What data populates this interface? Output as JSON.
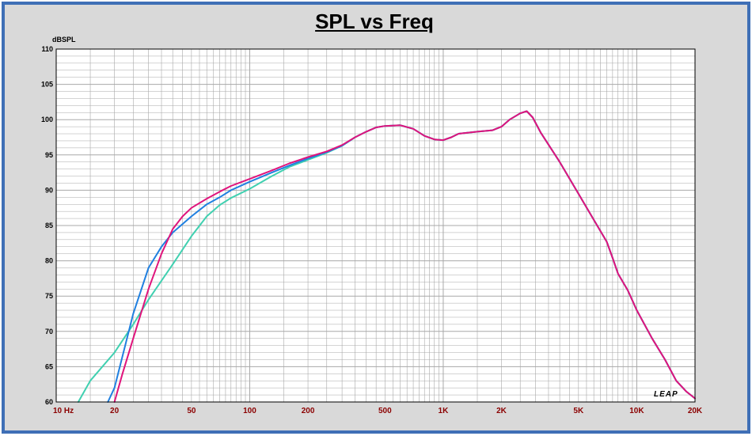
{
  "chart_data": {
    "type": "line",
    "title": "SPL vs Freq",
    "ylabel": "dBSPL",
    "xlabel": "",
    "xscale": "log",
    "xlim": [
      10,
      20000
    ],
    "ylim": [
      60,
      110
    ],
    "grid": true,
    "legend": "none",
    "watermark": "LEAP",
    "y_ticks": [
      "60",
      "65",
      "70",
      "75",
      "80",
      "85",
      "90",
      "95",
      "100",
      "105",
      "110"
    ],
    "x_ticks": [
      {
        "v": 10,
        "label": "10 Hz"
      },
      {
        "v": 20,
        "label": "20"
      },
      {
        "v": 50,
        "label": "50"
      },
      {
        "v": 100,
        "label": "100"
      },
      {
        "v": 200,
        "label": "200"
      },
      {
        "v": 500,
        "label": "500"
      },
      {
        "v": 1000,
        "label": "1K"
      },
      {
        "v": 2000,
        "label": "2K"
      },
      {
        "v": 5000,
        "label": "5K"
      },
      {
        "v": 10000,
        "label": "10K"
      },
      {
        "v": 20000,
        "label": "20K"
      }
    ],
    "series": [
      {
        "color": "#40d0b0",
        "points": [
          [
            13,
            60
          ],
          [
            15,
            63
          ],
          [
            20,
            67
          ],
          [
            25,
            71
          ],
          [
            30,
            74.5
          ],
          [
            40,
            79.5
          ],
          [
            50,
            83.5
          ],
          [
            60,
            86.3
          ],
          [
            70,
            87.9
          ],
          [
            80,
            88.9
          ],
          [
            100,
            90.2
          ],
          [
            130,
            92
          ],
          [
            160,
            93.3
          ],
          [
            200,
            94.3
          ],
          [
            250,
            95.3
          ],
          [
            300,
            96.3
          ],
          [
            350,
            97.5
          ],
          [
            400,
            98.3
          ],
          [
            450,
            98.9
          ],
          [
            500,
            99.1
          ],
          [
            600,
            99.2
          ],
          [
            700,
            98.7
          ],
          [
            800,
            97.7
          ],
          [
            900,
            97.2
          ],
          [
            1000,
            97.1
          ],
          [
            1100,
            97.5
          ],
          [
            1200,
            98
          ],
          [
            1500,
            98.3
          ],
          [
            1800,
            98.5
          ],
          [
            2000,
            99
          ],
          [
            2200,
            100
          ],
          [
            2500,
            100.9
          ],
          [
            2700,
            101.2
          ],
          [
            2900,
            100.3
          ],
          [
            3200,
            98.1
          ],
          [
            4000,
            94
          ],
          [
            5000,
            89.5
          ],
          [
            6000,
            85.8
          ],
          [
            7000,
            82.7
          ],
          [
            7500,
            80.4
          ],
          [
            8000,
            78.2
          ],
          [
            9000,
            75.8
          ],
          [
            10000,
            73
          ],
          [
            12000,
            69
          ],
          [
            14000,
            66
          ],
          [
            16000,
            63
          ],
          [
            18000,
            61.5
          ],
          [
            20000,
            60.5
          ]
        ]
      },
      {
        "color": "#2080e0",
        "points": [
          [
            18.5,
            60
          ],
          [
            20,
            62
          ],
          [
            25,
            72.5
          ],
          [
            30,
            79
          ],
          [
            35,
            82
          ],
          [
            40,
            84
          ],
          [
            50,
            86.3
          ],
          [
            60,
            88
          ],
          [
            70,
            89
          ],
          [
            80,
            90
          ],
          [
            100,
            91.2
          ],
          [
            130,
            92.5
          ],
          [
            160,
            93.5
          ],
          [
            200,
            94.5
          ],
          [
            250,
            95.4
          ],
          [
            300,
            96.3
          ],
          [
            350,
            97.5
          ],
          [
            400,
            98.3
          ],
          [
            450,
            98.9
          ],
          [
            500,
            99.1
          ],
          [
            600,
            99.2
          ],
          [
            700,
            98.7
          ],
          [
            800,
            97.7
          ],
          [
            900,
            97.2
          ],
          [
            1000,
            97.1
          ],
          [
            1100,
            97.5
          ],
          [
            1200,
            98
          ],
          [
            1500,
            98.3
          ],
          [
            1800,
            98.5
          ],
          [
            2000,
            99
          ],
          [
            2200,
            100
          ],
          [
            2500,
            100.9
          ],
          [
            2700,
            101.2
          ],
          [
            2900,
            100.3
          ],
          [
            3200,
            98.1
          ],
          [
            4000,
            94
          ],
          [
            5000,
            89.5
          ],
          [
            6000,
            85.8
          ],
          [
            7000,
            82.7
          ],
          [
            7500,
            80.4
          ],
          [
            8000,
            78.2
          ],
          [
            9000,
            75.8
          ],
          [
            10000,
            73
          ],
          [
            12000,
            69
          ],
          [
            14000,
            66
          ],
          [
            16000,
            63
          ],
          [
            18000,
            61.5
          ],
          [
            20000,
            60.5
          ]
        ]
      },
      {
        "color": "#e0147c",
        "points": [
          [
            20,
            60
          ],
          [
            22,
            64
          ],
          [
            25,
            69
          ],
          [
            30,
            76
          ],
          [
            35,
            81
          ],
          [
            40,
            84.5
          ],
          [
            45,
            86.3
          ],
          [
            50,
            87.5
          ],
          [
            60,
            88.8
          ],
          [
            70,
            89.8
          ],
          [
            80,
            90.6
          ],
          [
            100,
            91.6
          ],
          [
            130,
            92.8
          ],
          [
            160,
            93.8
          ],
          [
            200,
            94.7
          ],
          [
            250,
            95.5
          ],
          [
            300,
            96.4
          ],
          [
            350,
            97.5
          ],
          [
            400,
            98.3
          ],
          [
            450,
            98.9
          ],
          [
            500,
            99.1
          ],
          [
            600,
            99.2
          ],
          [
            700,
            98.7
          ],
          [
            800,
            97.7
          ],
          [
            900,
            97.2
          ],
          [
            1000,
            97.1
          ],
          [
            1100,
            97.5
          ],
          [
            1200,
            98
          ],
          [
            1500,
            98.3
          ],
          [
            1800,
            98.5
          ],
          [
            2000,
            99
          ],
          [
            2200,
            100
          ],
          [
            2500,
            100.9
          ],
          [
            2700,
            101.2
          ],
          [
            2900,
            100.3
          ],
          [
            3200,
            98.1
          ],
          [
            4000,
            94
          ],
          [
            5000,
            89.5
          ],
          [
            6000,
            85.8
          ],
          [
            7000,
            82.7
          ],
          [
            7500,
            80.4
          ],
          [
            8000,
            78.2
          ],
          [
            9000,
            75.8
          ],
          [
            10000,
            73
          ],
          [
            12000,
            69
          ],
          [
            14000,
            66
          ],
          [
            16000,
            63
          ],
          [
            18000,
            61.5
          ],
          [
            20000,
            60.5
          ]
        ]
      }
    ]
  },
  "colors": {
    "frame_border": "#3f6fb6",
    "background": "#d9d9d9",
    "plot_background": "#ffffff",
    "grid": "#a8a8a8",
    "x_tick_label": "#8b0000"
  }
}
